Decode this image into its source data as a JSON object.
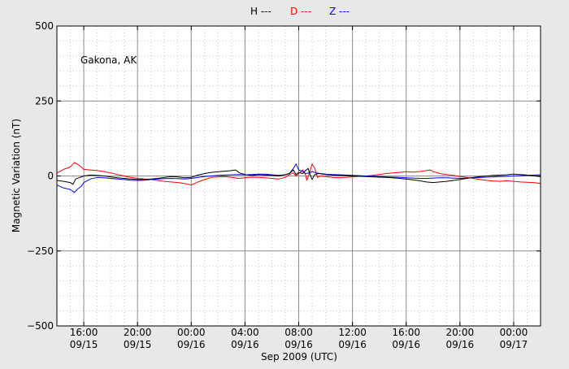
{
  "chart_data": {
    "type": "line",
    "location_label": "Gakona, AK",
    "xlabel": "Sep 2009 (UTC)",
    "ylabel": "Magnetic Variation (nT)",
    "ylim": [
      -500,
      500
    ],
    "yticks": [
      500,
      250,
      0,
      -250,
      -500
    ],
    "ytick_labels": [
      "500",
      "250",
      "0",
      "−250",
      "−500"
    ],
    "xlim_hours": [
      14,
      50
    ],
    "xticks": [
      {
        "hour": 16,
        "time": "16:00",
        "date": "09/15"
      },
      {
        "hour": 20,
        "time": "20:00",
        "date": "09/15"
      },
      {
        "hour": 24,
        "time": "00:00",
        "date": "09/16"
      },
      {
        "hour": 28,
        "time": "04:00",
        "date": "09/16"
      },
      {
        "hour": 32,
        "time": "08:00",
        "date": "09/16"
      },
      {
        "hour": 36,
        "time": "12:00",
        "date": "09/16"
      },
      {
        "hour": 40,
        "time": "16:00",
        "date": "09/16"
      },
      {
        "hour": 44,
        "time": "20:00",
        "date": "09/16"
      },
      {
        "hour": 48,
        "time": "00:00",
        "date": "09/17"
      }
    ],
    "grid": true,
    "legend": [
      {
        "label": "H ---",
        "color": "#000000"
      },
      {
        "label": "D ---",
        "color": "#ff0000"
      },
      {
        "label": "Z ---",
        "color": "#0000ff"
      }
    ],
    "series": [
      {
        "name": "H",
        "color": "#000000",
        "points": [
          [
            14.0,
            -15
          ],
          [
            14.5,
            -18
          ],
          [
            15.0,
            -22
          ],
          [
            15.2,
            -28
          ],
          [
            15.4,
            -10
          ],
          [
            15.7,
            -5
          ],
          [
            16.0,
            0
          ],
          [
            16.5,
            3
          ],
          [
            17.0,
            2
          ],
          [
            17.5,
            0
          ],
          [
            18.0,
            -3
          ],
          [
            18.5,
            -6
          ],
          [
            19.0,
            -8
          ],
          [
            19.5,
            -10
          ],
          [
            20.0,
            -12
          ],
          [
            20.5,
            -12
          ],
          [
            21.0,
            -10
          ],
          [
            21.5,
            -8
          ],
          [
            22.0,
            -5
          ],
          [
            22.5,
            -2
          ],
          [
            23.0,
            -3
          ],
          [
            23.5,
            -6
          ],
          [
            24.0,
            -5
          ],
          [
            24.5,
            3
          ],
          [
            25.0,
            8
          ],
          [
            25.5,
            12
          ],
          [
            26.0,
            14
          ],
          [
            26.5,
            16
          ],
          [
            27.0,
            18
          ],
          [
            27.3,
            20
          ],
          [
            27.6,
            10
          ],
          [
            28.0,
            5
          ],
          [
            28.5,
            2
          ],
          [
            29.0,
            4
          ],
          [
            29.5,
            3
          ],
          [
            30.0,
            2
          ],
          [
            30.5,
            0
          ],
          [
            31.0,
            5
          ],
          [
            31.3,
            8
          ],
          [
            31.6,
            20
          ],
          [
            31.8,
            5
          ],
          [
            32.0,
            12
          ],
          [
            32.3,
            8
          ],
          [
            32.5,
            18
          ],
          [
            32.7,
            25
          ],
          [
            32.8,
            10
          ],
          [
            33.0,
            -12
          ],
          [
            33.2,
            5
          ],
          [
            33.5,
            8
          ],
          [
            34.0,
            5
          ],
          [
            34.5,
            3
          ],
          [
            35.0,
            2
          ],
          [
            35.5,
            1
          ],
          [
            36.0,
            0
          ],
          [
            36.5,
            -1
          ],
          [
            37.0,
            -2
          ],
          [
            37.5,
            -3
          ],
          [
            38.0,
            -4
          ],
          [
            38.5,
            -5
          ],
          [
            39.0,
            -6
          ],
          [
            39.5,
            -8
          ],
          [
            40.0,
            -10
          ],
          [
            40.5,
            -13
          ],
          [
            41.0,
            -16
          ],
          [
            41.5,
            -20
          ],
          [
            42.0,
            -22
          ],
          [
            42.5,
            -20
          ],
          [
            43.0,
            -18
          ],
          [
            43.5,
            -15
          ],
          [
            44.0,
            -12
          ],
          [
            44.5,
            -8
          ],
          [
            45.0,
            -5
          ],
          [
            45.5,
            -2
          ],
          [
            46.0,
            0
          ],
          [
            46.5,
            2
          ],
          [
            47.0,
            3
          ],
          [
            47.5,
            4
          ],
          [
            48.0,
            6
          ],
          [
            48.5,
            5
          ],
          [
            49.0,
            3
          ],
          [
            49.5,
            0
          ],
          [
            50.0,
            -2
          ]
        ]
      },
      {
        "name": "D",
        "color": "#ff0000",
        "points": [
          [
            14.0,
            10
          ],
          [
            14.5,
            22
          ],
          [
            15.0,
            30
          ],
          [
            15.3,
            45
          ],
          [
            15.5,
            40
          ],
          [
            15.8,
            30
          ],
          [
            16.0,
            22
          ],
          [
            16.5,
            20
          ],
          [
            17.0,
            18
          ],
          [
            17.5,
            15
          ],
          [
            18.0,
            10
          ],
          [
            18.5,
            5
          ],
          [
            19.0,
            0
          ],
          [
            19.5,
            -5
          ],
          [
            20.0,
            -8
          ],
          [
            20.5,
            -10
          ],
          [
            21.0,
            -12
          ],
          [
            21.5,
            -15
          ],
          [
            22.0,
            -18
          ],
          [
            22.5,
            -20
          ],
          [
            23.0,
            -22
          ],
          [
            23.5,
            -25
          ],
          [
            24.0,
            -30
          ],
          [
            24.5,
            -20
          ],
          [
            25.0,
            -12
          ],
          [
            25.5,
            -5
          ],
          [
            26.0,
            -3
          ],
          [
            26.5,
            -2
          ],
          [
            27.0,
            -5
          ],
          [
            27.5,
            -8
          ],
          [
            28.0,
            -6
          ],
          [
            28.5,
            -4
          ],
          [
            29.0,
            -5
          ],
          [
            29.5,
            -6
          ],
          [
            30.0,
            -8
          ],
          [
            30.5,
            -10
          ],
          [
            31.0,
            -5
          ],
          [
            31.3,
            5
          ],
          [
            31.6,
            10
          ],
          [
            31.8,
            0
          ],
          [
            32.0,
            8
          ],
          [
            32.3,
            20
          ],
          [
            32.5,
            5
          ],
          [
            32.6,
            -15
          ],
          [
            32.8,
            10
          ],
          [
            33.0,
            40
          ],
          [
            33.2,
            25
          ],
          [
            33.4,
            -5
          ],
          [
            33.6,
            0
          ],
          [
            34.0,
            -2
          ],
          [
            34.5,
            -5
          ],
          [
            35.0,
            -6
          ],
          [
            35.5,
            -5
          ],
          [
            36.0,
            -3
          ],
          [
            36.5,
            -1
          ],
          [
            37.0,
            0
          ],
          [
            37.5,
            2
          ],
          [
            38.0,
            5
          ],
          [
            38.5,
            8
          ],
          [
            39.0,
            10
          ],
          [
            39.5,
            12
          ],
          [
            40.0,
            14
          ],
          [
            40.5,
            13
          ],
          [
            41.0,
            15
          ],
          [
            41.5,
            18
          ],
          [
            41.8,
            20
          ],
          [
            42.0,
            15
          ],
          [
            42.5,
            8
          ],
          [
            43.0,
            5
          ],
          [
            43.5,
            2
          ],
          [
            44.0,
            -2
          ],
          [
            44.5,
            -5
          ],
          [
            45.0,
            -8
          ],
          [
            45.5,
            -12
          ],
          [
            46.0,
            -15
          ],
          [
            46.5,
            -17
          ],
          [
            47.0,
            -18
          ],
          [
            47.5,
            -16
          ],
          [
            48.0,
            -18
          ],
          [
            48.5,
            -20
          ],
          [
            49.0,
            -21
          ],
          [
            49.5,
            -22
          ],
          [
            50.0,
            -25
          ]
        ]
      },
      {
        "name": "Z",
        "color": "#0000ff",
        "points": [
          [
            14.0,
            -30
          ],
          [
            14.5,
            -40
          ],
          [
            15.0,
            -45
          ],
          [
            15.3,
            -55
          ],
          [
            15.5,
            -45
          ],
          [
            15.8,
            -35
          ],
          [
            16.0,
            -22
          ],
          [
            16.5,
            -10
          ],
          [
            17.0,
            -5
          ],
          [
            17.5,
            -6
          ],
          [
            18.0,
            -8
          ],
          [
            18.5,
            -10
          ],
          [
            19.0,
            -12
          ],
          [
            19.5,
            -14
          ],
          [
            20.0,
            -15
          ],
          [
            20.5,
            -14
          ],
          [
            21.0,
            -12
          ],
          [
            21.5,
            -10
          ],
          [
            22.0,
            -9
          ],
          [
            22.5,
            -8
          ],
          [
            23.0,
            -9
          ],
          [
            23.5,
            -10
          ],
          [
            24.0,
            -8
          ],
          [
            24.5,
            -5
          ],
          [
            25.0,
            -2
          ],
          [
            25.5,
            0
          ],
          [
            26.0,
            2
          ],
          [
            26.5,
            3
          ],
          [
            27.0,
            4
          ],
          [
            27.5,
            5
          ],
          [
            28.0,
            4
          ],
          [
            28.5,
            5
          ],
          [
            29.0,
            6
          ],
          [
            29.5,
            6
          ],
          [
            30.0,
            4
          ],
          [
            30.5,
            2
          ],
          [
            31.0,
            4
          ],
          [
            31.3,
            8
          ],
          [
            31.6,
            25
          ],
          [
            31.8,
            40
          ],
          [
            32.0,
            20
          ],
          [
            32.3,
            15
          ],
          [
            32.5,
            8
          ],
          [
            32.8,
            10
          ],
          [
            33.0,
            15
          ],
          [
            33.3,
            10
          ],
          [
            33.6,
            8
          ],
          [
            34.0,
            6
          ],
          [
            34.5,
            5
          ],
          [
            35.0,
            4
          ],
          [
            35.5,
            3
          ],
          [
            36.0,
            2
          ],
          [
            36.5,
            1
          ],
          [
            37.0,
            0
          ],
          [
            37.5,
            -1
          ],
          [
            38.0,
            -2
          ],
          [
            38.5,
            -3
          ],
          [
            39.0,
            -4
          ],
          [
            39.5,
            -5
          ],
          [
            40.0,
            -6
          ],
          [
            40.5,
            -7
          ],
          [
            41.0,
            -8
          ],
          [
            41.5,
            -8
          ],
          [
            42.0,
            -7
          ],
          [
            42.5,
            -6
          ],
          [
            43.0,
            -6
          ],
          [
            43.5,
            -7
          ],
          [
            44.0,
            -8
          ],
          [
            44.5,
            -7
          ],
          [
            45.0,
            -6
          ],
          [
            45.5,
            -5
          ],
          [
            46.0,
            -4
          ],
          [
            46.5,
            -3
          ],
          [
            47.0,
            -2
          ],
          [
            47.5,
            -1
          ],
          [
            48.0,
            0
          ],
          [
            48.5,
            1
          ],
          [
            49.0,
            2
          ],
          [
            49.5,
            3
          ],
          [
            50.0,
            4
          ]
        ]
      }
    ]
  }
}
